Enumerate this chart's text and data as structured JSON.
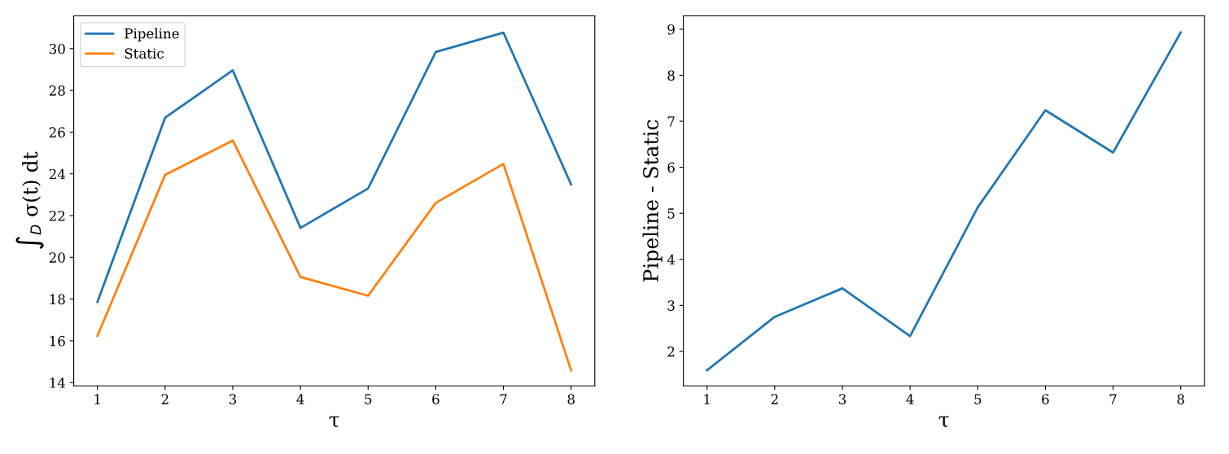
{
  "chart_data": [
    {
      "type": "line",
      "x": [
        1,
        2,
        3,
        4,
        5,
        6,
        7,
        8
      ],
      "xlabel": "τ",
      "ylabel": "∫$_{D}$ σ(t) dt",
      "xlim": [
        0.65,
        8.35
      ],
      "xticks": [
        1,
        2,
        3,
        4,
        5,
        6,
        7,
        8
      ],
      "ylim": [
        13.84,
        31.57
      ],
      "yticks": [
        14,
        16,
        18,
        20,
        22,
        24,
        26,
        28,
        30
      ],
      "legend": "top left",
      "grid": false,
      "series": [
        {
          "name": "Pipeline",
          "color": "#1f77b4",
          "values": [
            17.86,
            26.69,
            28.96,
            21.41,
            23.3,
            29.84,
            30.77,
            23.49
          ]
        },
        {
          "name": "Static",
          "color": "#ff7f0e",
          "values": [
            16.24,
            23.95,
            25.6,
            19.06,
            18.16,
            22.61,
            24.48,
            14.58
          ]
        }
      ]
    },
    {
      "type": "line",
      "x": [
        1,
        2,
        3,
        4,
        5,
        6,
        7,
        8
      ],
      "xlabel": "τ",
      "ylabel": "Pipeline - Static",
      "xlim": [
        0.65,
        8.35
      ],
      "xticks": [
        1,
        2,
        3,
        4,
        5,
        6,
        7,
        8
      ],
      "ylim": [
        1.25,
        9.29
      ],
      "yticks": [
        2,
        3,
        4,
        5,
        6,
        7,
        8,
        9
      ],
      "grid": false,
      "series": [
        {
          "color": "#1f77b4",
          "values": [
            1.59,
            2.75,
            3.37,
            2.33,
            5.13,
            7.24,
            6.32,
            8.93
          ]
        }
      ]
    }
  ]
}
